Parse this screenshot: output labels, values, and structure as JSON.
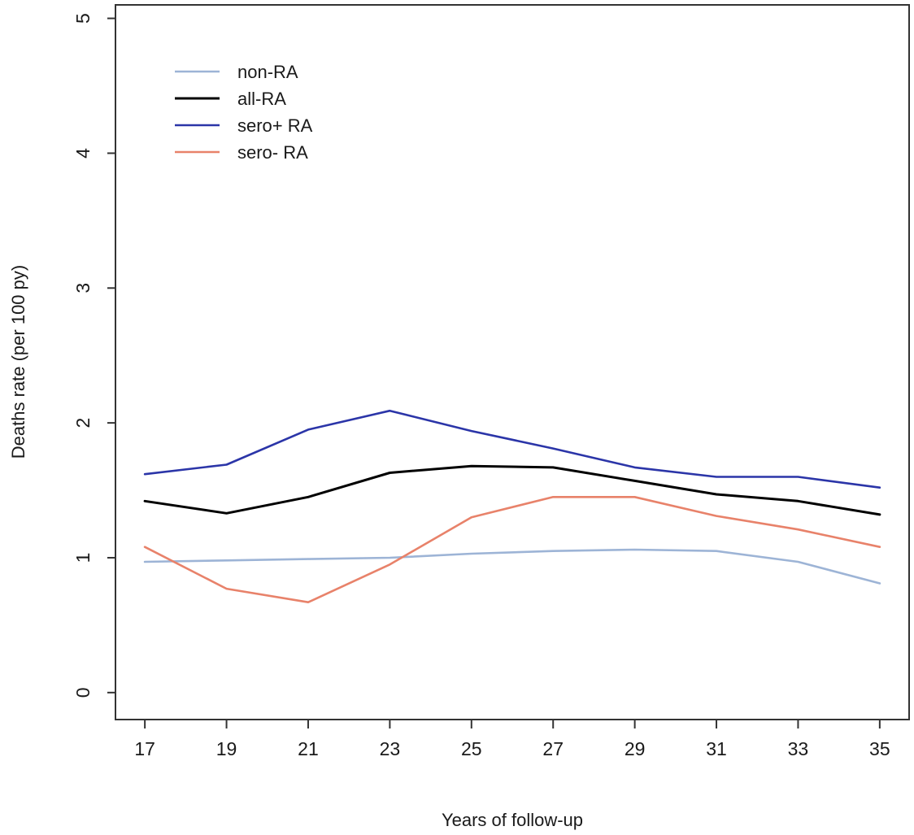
{
  "chart_data": {
    "type": "line",
    "title": "",
    "xlabel": "Years of follow-up",
    "ylabel": "Deaths rate (per 100 py)",
    "x": [
      17,
      19,
      21,
      23,
      25,
      27,
      29,
      31,
      33,
      35
    ],
    "xticks": [
      17,
      19,
      21,
      23,
      25,
      27,
      29,
      31,
      33,
      35
    ],
    "yticks": [
      0,
      1,
      2,
      3,
      4,
      5
    ],
    "xlim": [
      16.28,
      35.72
    ],
    "ylim": [
      -0.2,
      5.1
    ],
    "grid": false,
    "legend_position": "top-left",
    "series": [
      {
        "name": "non-RA",
        "color": "#9db4d6",
        "values": [
          0.97,
          0.98,
          0.99,
          1.0,
          1.03,
          1.05,
          1.06,
          1.05,
          0.97,
          0.81
        ]
      },
      {
        "name": "all-RA",
        "color": "#000000",
        "values": [
          1.42,
          1.33,
          1.45,
          1.63,
          1.68,
          1.67,
          1.57,
          1.47,
          1.42,
          1.32
        ]
      },
      {
        "name": "sero+ RA",
        "color": "#2b35a8",
        "values": [
          1.62,
          1.69,
          1.95,
          2.09,
          1.94,
          1.81,
          1.67,
          1.6,
          1.6,
          1.52
        ]
      },
      {
        "name": "sero- RA",
        "color": "#e8826a",
        "values": [
          1.08,
          0.77,
          0.67,
          0.95,
          1.3,
          1.45,
          1.45,
          1.31,
          1.21,
          1.08
        ]
      }
    ]
  }
}
